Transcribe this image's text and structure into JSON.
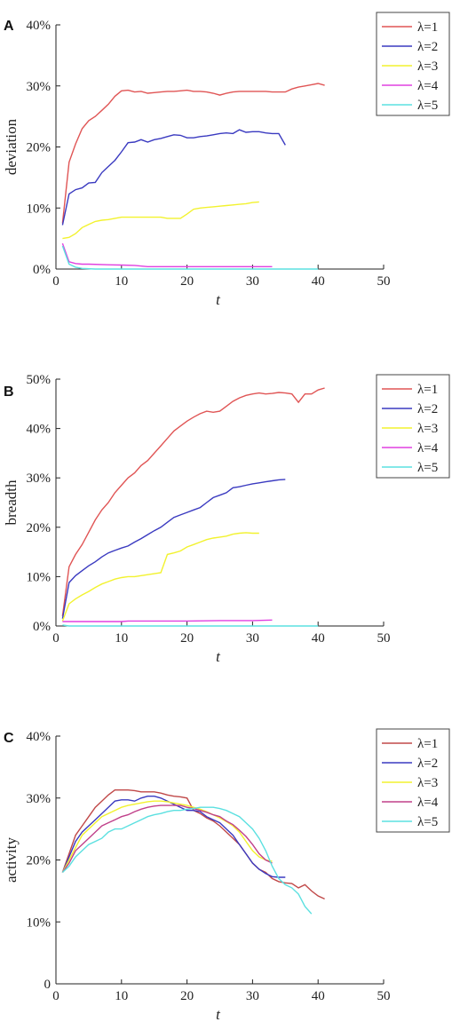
{
  "chart_data": [
    {
      "panel": "A",
      "type": "line",
      "xlabel": "t",
      "ylabel": "deviation",
      "xlim": [
        0,
        50
      ],
      "ylim": [
        0,
        40
      ],
      "xticks": [
        0,
        10,
        20,
        30,
        40,
        50
      ],
      "yticks": [
        0,
        10,
        20,
        30,
        40
      ],
      "ytick_labels": [
        "0%",
        "10%",
        "20%",
        "30%",
        "40%"
      ],
      "legend_position": "top-right",
      "series": [
        {
          "name": "λ=1",
          "color": "#e05555",
          "x": [
            1,
            2,
            3,
            4,
            5,
            6,
            7,
            8,
            9,
            10,
            11,
            12,
            13,
            14,
            15,
            16,
            17,
            18,
            19,
            20,
            21,
            22,
            23,
            24,
            25,
            26,
            27,
            28,
            29,
            30,
            31,
            32,
            33,
            34,
            35,
            36,
            37,
            38,
            39,
            40,
            41
          ],
          "y": [
            7.5,
            17.5,
            20.5,
            23,
            24.3,
            25,
            26,
            27,
            28.3,
            29.2,
            29.3,
            29,
            29.1,
            28.8,
            28.9,
            29,
            29.1,
            29.1,
            29.2,
            29.3,
            29.1,
            29.1,
            29,
            28.8,
            28.5,
            28.8,
            29,
            29.1,
            29.1,
            29.1,
            29.1,
            29.1,
            29,
            29,
            29,
            29.5,
            29.8,
            30,
            30.2,
            30.4,
            30.1
          ]
        },
        {
          "name": "λ=2",
          "color": "#3a3ac0",
          "x": [
            1,
            2,
            3,
            4,
            5,
            6,
            7,
            8,
            9,
            10,
            11,
            12,
            13,
            14,
            15,
            16,
            17,
            18,
            19,
            20,
            21,
            22,
            23,
            24,
            25,
            26,
            27,
            28,
            29,
            30,
            31,
            32,
            33,
            34,
            35
          ],
          "y": [
            7.2,
            12.3,
            13,
            13.3,
            14.1,
            14.2,
            15.8,
            16.8,
            17.8,
            19.2,
            20.7,
            20.8,
            21.2,
            20.8,
            21.2,
            21.4,
            21.7,
            22,
            21.9,
            21.5,
            21.5,
            21.7,
            21.8,
            22,
            22.2,
            22.3,
            22.2,
            22.8,
            22.4,
            22.5,
            22.5,
            22.3,
            22.2,
            22.2,
            20.3
          ]
        },
        {
          "name": "λ=3",
          "color": "#f2f22e",
          "x": [
            1,
            2,
            3,
            4,
            5,
            6,
            7,
            8,
            9,
            10,
            11,
            12,
            13,
            14,
            15,
            16,
            17,
            18,
            19,
            20,
            21,
            22,
            23,
            24,
            25,
            26,
            27,
            28,
            29,
            30,
            31
          ],
          "y": [
            5,
            5.2,
            5.8,
            6.8,
            7.3,
            7.8,
            8,
            8.1,
            8.3,
            8.5,
            8.5,
            8.5,
            8.5,
            8.5,
            8.5,
            8.5,
            8.3,
            8.3,
            8.3,
            9,
            9.8,
            10,
            10.1,
            10.2,
            10.3,
            10.4,
            10.5,
            10.6,
            10.7,
            10.9,
            11
          ]
        },
        {
          "name": "λ=4",
          "color": "#e040e0",
          "x": [
            1,
            2,
            3,
            4,
            5,
            8,
            10,
            12,
            14,
            16,
            18,
            20,
            22,
            24,
            26,
            28,
            30,
            32,
            33
          ],
          "y": [
            4.2,
            1.2,
            0.9,
            0.8,
            0.8,
            0.7,
            0.65,
            0.6,
            0.4,
            0.4,
            0.4,
            0.4,
            0.4,
            0.4,
            0.4,
            0.4,
            0.4,
            0.4,
            0.4
          ]
        },
        {
          "name": "λ=5",
          "color": "#5be0e0",
          "x": [
            1,
            2,
            3,
            4,
            6,
            10,
            20,
            30,
            40
          ],
          "y": [
            3.8,
            0.8,
            0.3,
            0.1,
            0,
            0,
            0,
            0,
            0
          ]
        }
      ]
    },
    {
      "panel": "B",
      "type": "line",
      "xlabel": "t",
      "ylabel": "breadth",
      "xlim": [
        0,
        50
      ],
      "ylim": [
        0,
        50
      ],
      "xticks": [
        0,
        10,
        20,
        30,
        40,
        50
      ],
      "yticks": [
        0,
        10,
        20,
        30,
        40,
        50
      ],
      "ytick_labels": [
        "0%",
        "10%",
        "20%",
        "30%",
        "40%",
        "50%"
      ],
      "legend_position": "top-right",
      "series": [
        {
          "name": "λ=1",
          "color": "#e05555",
          "x": [
            1,
            2,
            3,
            4,
            5,
            6,
            7,
            8,
            9,
            10,
            11,
            12,
            13,
            14,
            15,
            16,
            17,
            18,
            19,
            20,
            21,
            22,
            23,
            24,
            25,
            26,
            27,
            28,
            29,
            30,
            31,
            32,
            33,
            34,
            35,
            36,
            37,
            38,
            39,
            40,
            41
          ],
          "y": [
            2,
            12,
            14.5,
            16.5,
            19,
            21.5,
            23.5,
            25,
            27,
            28.5,
            30,
            31,
            32.5,
            33.5,
            35,
            36.5,
            38,
            39.5,
            40.5,
            41.5,
            42.3,
            43,
            43.5,
            43.3,
            43.5,
            44.5,
            45.5,
            46.2,
            46.7,
            47,
            47.2,
            47,
            47.1,
            47.3,
            47.2,
            47,
            45.3,
            47,
            47,
            47.8,
            48.2
          ]
        },
        {
          "name": "λ=2",
          "color": "#3a3ac0",
          "x": [
            1,
            2,
            3,
            4,
            5,
            6,
            7,
            8,
            9,
            10,
            11,
            12,
            13,
            14,
            15,
            16,
            17,
            18,
            19,
            20,
            21,
            22,
            23,
            24,
            25,
            26,
            27,
            28,
            29,
            30,
            31,
            32,
            33,
            34,
            35
          ],
          "y": [
            1.5,
            8.8,
            10.2,
            11.2,
            12.2,
            13,
            14,
            14.8,
            15.3,
            15.8,
            16.2,
            17,
            17.7,
            18.5,
            19.3,
            20,
            21,
            22,
            22.5,
            23,
            23.5,
            24,
            25,
            26,
            26.5,
            27,
            28,
            28.2,
            28.5,
            28.8,
            29,
            29.2,
            29.4,
            29.6,
            29.7
          ]
        },
        {
          "name": "λ=3",
          "color": "#f2f22e",
          "x": [
            1,
            2,
            3,
            4,
            5,
            6,
            7,
            8,
            9,
            10,
            11,
            12,
            13,
            14,
            15,
            16,
            17,
            18,
            19,
            20,
            21,
            22,
            23,
            24,
            25,
            26,
            27,
            28,
            29,
            30,
            31
          ],
          "y": [
            1,
            4.5,
            5.5,
            6.3,
            7,
            7.8,
            8.5,
            9,
            9.5,
            9.8,
            10,
            10,
            10.2,
            10.4,
            10.6,
            10.8,
            14.5,
            14.8,
            15.2,
            16,
            16.5,
            17,
            17.5,
            17.8,
            18,
            18.2,
            18.6,
            18.8,
            18.9,
            18.8,
            18.8
          ]
        },
        {
          "name": "λ=4",
          "color": "#e040e0",
          "x": [
            1,
            5,
            10,
            11,
            15,
            20,
            25,
            30,
            33
          ],
          "y": [
            0.9,
            0.9,
            0.9,
            1,
            1,
            1,
            1.1,
            1.1,
            1.2
          ]
        },
        {
          "name": "λ=5",
          "color": "#5be0e0",
          "x": [
            1,
            2,
            5,
            10,
            20,
            30,
            40
          ],
          "y": [
            0.2,
            0,
            0,
            0,
            0,
            0,
            0
          ]
        }
      ]
    },
    {
      "panel": "C",
      "type": "line",
      "xlabel": "t",
      "ylabel": "activity",
      "xlim": [
        0,
        50
      ],
      "ylim": [
        0,
        40
      ],
      "xticks": [
        0,
        10,
        20,
        30,
        40,
        50
      ],
      "yticks": [
        0,
        10,
        20,
        30,
        40
      ],
      "ytick_labels": [
        "0",
        "10%",
        "20%",
        "30%",
        "40%"
      ],
      "legend_position": "top-right",
      "series": [
        {
          "name": "λ=1",
          "color": "#c04848",
          "x": [
            1,
            2,
            3,
            4,
            5,
            6,
            7,
            8,
            9,
            10,
            11,
            12,
            13,
            14,
            15,
            16,
            17,
            18,
            19,
            20,
            21,
            22,
            23,
            24,
            25,
            26,
            27,
            28,
            29,
            30,
            31,
            32,
            33,
            34,
            35,
            36,
            37,
            38,
            39,
            40,
            41
          ],
          "y": [
            18,
            21,
            24,
            25.5,
            27,
            28.5,
            29.5,
            30.5,
            31.3,
            31.3,
            31.3,
            31.2,
            31,
            31,
            31,
            30.8,
            30.5,
            30.3,
            30.2,
            30,
            28,
            27.5,
            26.8,
            26.3,
            25.5,
            24.5,
            23.5,
            22.5,
            21,
            19.5,
            18.5,
            18,
            17,
            16.5,
            16.3,
            16.2,
            15.5,
            16,
            15,
            14.2,
            13.7
          ]
        },
        {
          "name": "λ=2",
          "color": "#3a3ac0",
          "x": [
            1,
            2,
            3,
            4,
            5,
            6,
            7,
            8,
            9,
            10,
            11,
            12,
            13,
            14,
            15,
            16,
            17,
            18,
            19,
            20,
            21,
            22,
            23,
            24,
            25,
            26,
            27,
            28,
            29,
            30,
            31,
            32,
            33,
            34,
            35
          ],
          "y": [
            18,
            20.5,
            23,
            24.5,
            25.5,
            26.5,
            27.5,
            28.5,
            29.5,
            29.7,
            29.7,
            29.5,
            30,
            30.3,
            30.3,
            30,
            29.5,
            29,
            28.5,
            28,
            28,
            27.8,
            27,
            26.5,
            26,
            25,
            24,
            22.5,
            21,
            19.5,
            18.5,
            17.8,
            17.3,
            17.2,
            17.2
          ]
        },
        {
          "name": "λ=3",
          "color": "#f2f22e",
          "x": [
            1,
            2,
            3,
            4,
            5,
            6,
            7,
            8,
            9,
            10,
            11,
            12,
            13,
            14,
            15,
            16,
            17,
            18,
            19,
            20,
            21,
            22,
            23,
            24,
            25,
            26,
            27,
            28,
            29,
            30,
            31,
            32,
            33
          ],
          "y": [
            18,
            20,
            22,
            24,
            25,
            26,
            27,
            27.5,
            28,
            28.5,
            28.8,
            29,
            29.2,
            29.4,
            29.5,
            29.5,
            29.4,
            29.2,
            29,
            28.8,
            28.5,
            28.2,
            27.8,
            27.3,
            26.8,
            26.2,
            25.5,
            24.5,
            23,
            21.5,
            20.5,
            20,
            19.8
          ]
        },
        {
          "name": "λ=4",
          "color": "#c0408a",
          "x": [
            1,
            2,
            3,
            4,
            5,
            6,
            7,
            8,
            9,
            10,
            11,
            12,
            13,
            14,
            15,
            16,
            17,
            18,
            19,
            20,
            21,
            22,
            23,
            24,
            25,
            26,
            27,
            28,
            29,
            30,
            31,
            32,
            33
          ],
          "y": [
            18,
            19.5,
            21.5,
            22.5,
            23.5,
            24.5,
            25.5,
            26,
            26.5,
            27,
            27.3,
            27.8,
            28.2,
            28.5,
            28.7,
            28.8,
            28.8,
            28.8,
            28.8,
            28.5,
            28.3,
            28,
            27.7,
            27.3,
            27,
            26.3,
            25.7,
            24.8,
            23.8,
            22.5,
            21,
            20,
            19.5
          ]
        },
        {
          "name": "λ=5",
          "color": "#5be0e0",
          "x": [
            1,
            2,
            3,
            4,
            5,
            6,
            7,
            8,
            9,
            10,
            11,
            12,
            13,
            14,
            15,
            16,
            17,
            18,
            19,
            20,
            21,
            22,
            23,
            24,
            25,
            26,
            27,
            28,
            29,
            30,
            31,
            32,
            33,
            34,
            35,
            36,
            37,
            38,
            39
          ],
          "y": [
            18,
            19,
            20.5,
            21.5,
            22.5,
            23,
            23.5,
            24.5,
            25,
            25,
            25.5,
            26,
            26.5,
            27,
            27.3,
            27.5,
            27.8,
            28,
            28,
            28.2,
            28.3,
            28.5,
            28.5,
            28.5,
            28.3,
            28,
            27.5,
            27,
            26,
            25,
            23.5,
            21.5,
            19,
            17,
            16,
            15.5,
            14.5,
            12.5,
            11.3
          ]
        }
      ]
    }
  ]
}
